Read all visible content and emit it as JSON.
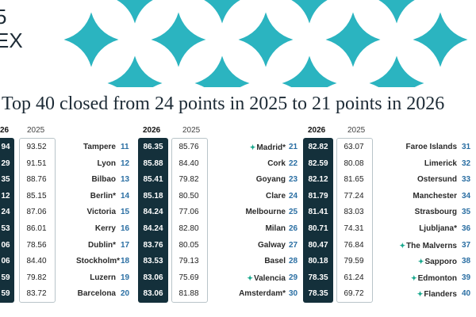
{
  "brand": {
    "line1": "5",
    "line2": "EX"
  },
  "headline": "Top 40 closed from 24 points in 2025 to 21 points in 2026",
  "colors": {
    "dark_box": "#14303b",
    "rank_blue": "#2b6fa3",
    "decor_teal": "#2bb4c0",
    "star_green": "#19a88d"
  },
  "header": {
    "y2026": "2026",
    "y2025": "2025",
    "y2026_partial": "26"
  },
  "col0": [
    {
      "v26": "94",
      "v25": "93.52"
    },
    {
      "v26": "29",
      "v25": "91.51"
    },
    {
      "v26": "35",
      "v25": "88.76"
    },
    {
      "v26": "12",
      "v25": "85.15"
    },
    {
      "v26": "24",
      "v25": "87.06"
    },
    {
      "v26": "53",
      "v25": "86.01"
    },
    {
      "v26": "06",
      "v25": "78.56"
    },
    {
      "v26": "06",
      "v25": "84.40"
    },
    {
      "v26": "59",
      "v25": "79.82"
    },
    {
      "v26": "59",
      "v25": "83.72"
    }
  ],
  "col1": [
    {
      "name": "Tampere",
      "rank": "11",
      "v26": "86.35",
      "v25": "85.76"
    },
    {
      "name": "Lyon",
      "rank": "12",
      "v26": "85.88",
      "v25": "84.40"
    },
    {
      "name": "Bilbao",
      "rank": "13",
      "v26": "85.41",
      "v25": "79.82"
    },
    {
      "name": "Berlin*",
      "rank": "14",
      "v26": "85.18",
      "v25": "80.50"
    },
    {
      "name": "Victoria",
      "rank": "15",
      "v26": "84.24",
      "v25": "77.06"
    },
    {
      "name": "Kerry",
      "rank": "16",
      "v26": "84.24",
      "v25": "82.80"
    },
    {
      "name": "Dublin*",
      "rank": "17",
      "v26": "83.76",
      "v25": "80.05"
    },
    {
      "name": "Stockholm*",
      "rank": "18",
      "v26": "83.53",
      "v25": "79.13"
    },
    {
      "name": "Luzern",
      "rank": "19",
      "v26": "83.06",
      "v25": "75.69"
    },
    {
      "name": "Barcelona",
      "rank": "20",
      "v26": "83.06",
      "v25": "81.88"
    }
  ],
  "col2": [
    {
      "name": "Madrid*",
      "star": true,
      "rank": "21",
      "v26": "82.82",
      "v25": "63.07"
    },
    {
      "name": "Cork",
      "star": false,
      "rank": "22",
      "v26": "82.59",
      "v25": "80.08"
    },
    {
      "name": "Goyang",
      "star": false,
      "rank": "23",
      "v26": "82.12",
      "v25": "81.65"
    },
    {
      "name": "Clare",
      "star": false,
      "rank": "24",
      "v26": "81.79",
      "v25": "77.24"
    },
    {
      "name": "Melbourne",
      "star": false,
      "rank": "25",
      "v26": "81.41",
      "v25": "83.03"
    },
    {
      "name": "Milan",
      "star": false,
      "rank": "26",
      "v26": "80.71",
      "v25": "74.31"
    },
    {
      "name": "Galway",
      "star": false,
      "rank": "27",
      "v26": "80.47",
      "v25": "76.84"
    },
    {
      "name": "Basel",
      "star": false,
      "rank": "28",
      "v26": "80.18",
      "v25": "79.59"
    },
    {
      "name": "Valencia",
      "star": true,
      "rank": "29",
      "v26": "78.35",
      "v25": "61.24"
    },
    {
      "name": "Amsterdam*",
      "star": false,
      "rank": "30",
      "v26": "78.35",
      "v25": "69.72"
    }
  ],
  "col3": [
    {
      "name": "Faroe Islands",
      "star": false,
      "rank": "31"
    },
    {
      "name": "Limerick",
      "star": false,
      "rank": "32"
    },
    {
      "name": "Ostersund",
      "star": false,
      "rank": "33"
    },
    {
      "name": "Manchester",
      "star": false,
      "rank": "34"
    },
    {
      "name": "Strasbourg",
      "star": false,
      "rank": "35"
    },
    {
      "name": "Ljubljana*",
      "star": false,
      "rank": "36"
    },
    {
      "name": "The Malverns",
      "star": true,
      "rank": "37"
    },
    {
      "name": "Sapporo",
      "star": true,
      "rank": "38"
    },
    {
      "name": "Edmonton",
      "star": true,
      "rank": "39"
    },
    {
      "name": "Flanders",
      "star": true,
      "rank": "40"
    }
  ]
}
